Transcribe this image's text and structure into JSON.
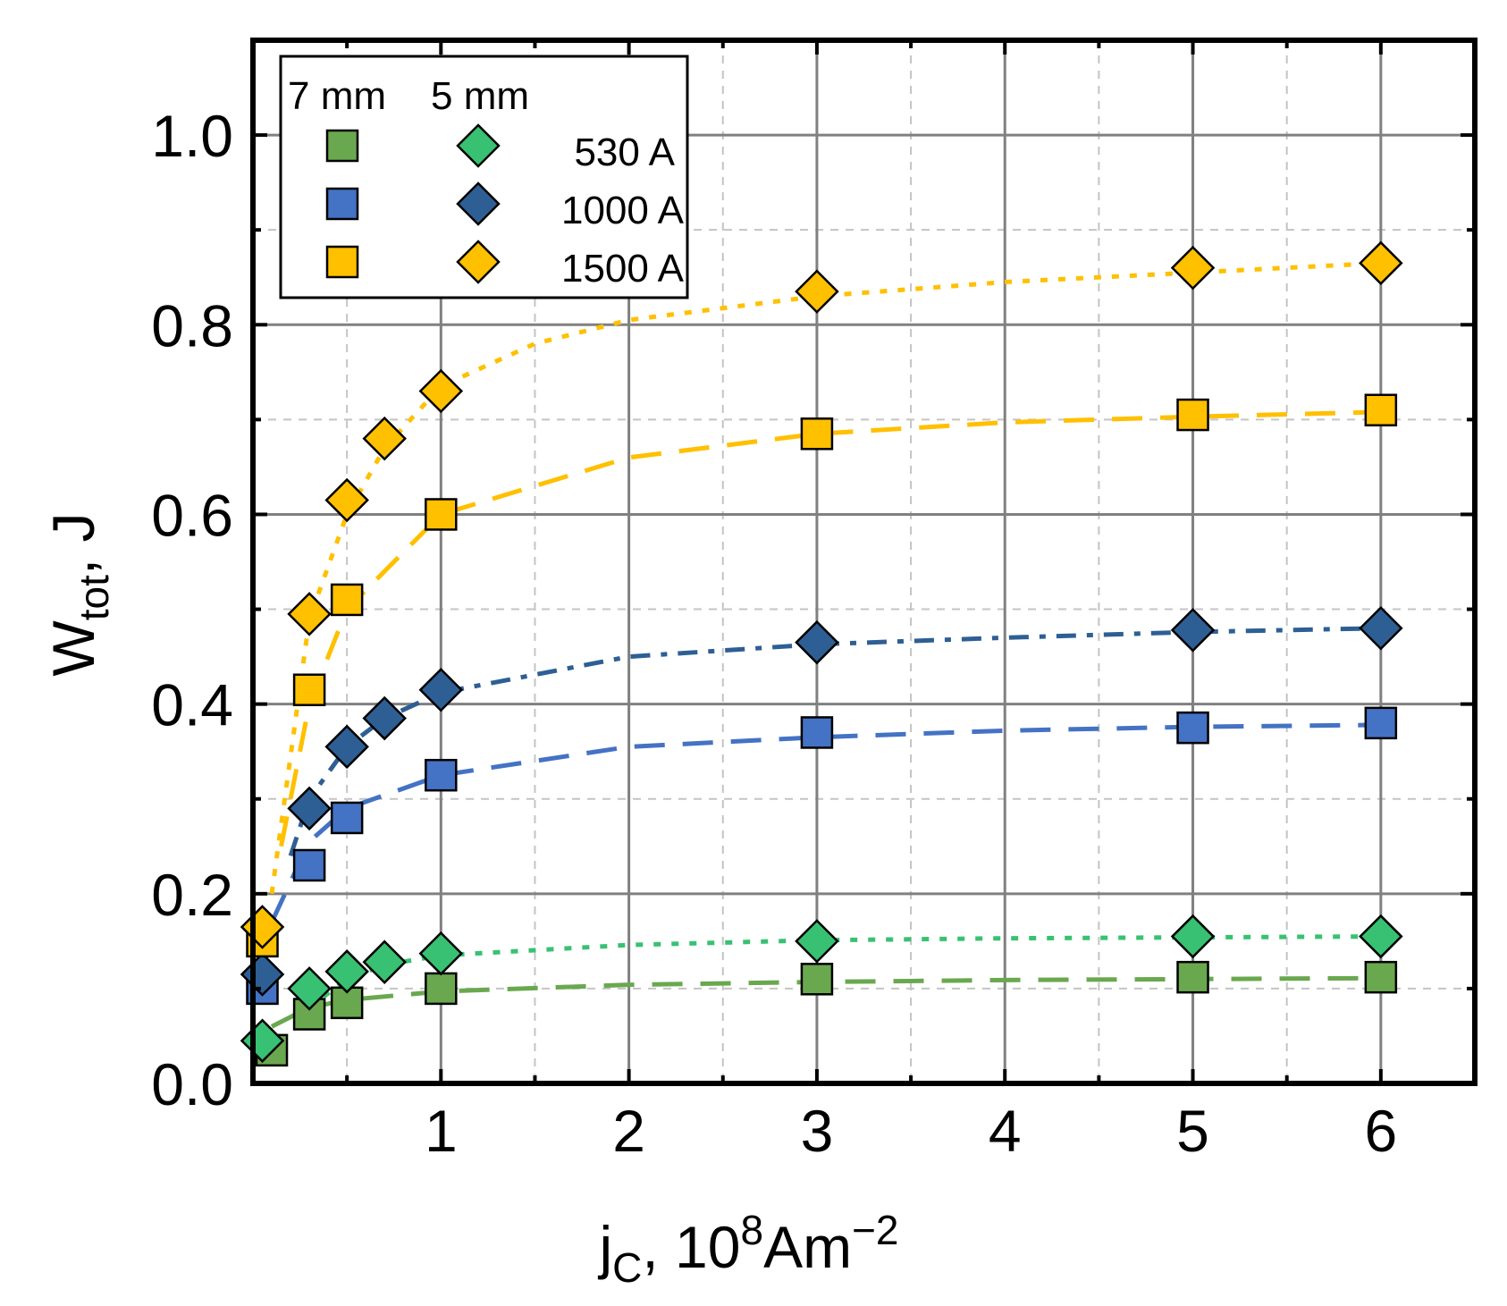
{
  "chart_data": {
    "type": "scatter",
    "title": "",
    "xlabel": {
      "base": "j",
      "sub": "C",
      "rest": ", 10",
      "sup1": "8",
      "unit": "Am",
      "sup2": "−2"
    },
    "ylabel": {
      "base": "W",
      "sub": "tot",
      "rest": ", J"
    },
    "xlim": [
      0,
      6.5
    ],
    "ylim": [
      0,
      1.1
    ],
    "x_ticks": [
      1,
      2,
      3,
      4,
      5,
      6
    ],
    "x_tick_labels": [
      "1",
      "2",
      "3",
      "4",
      "5",
      "6"
    ],
    "y_ticks": [
      0,
      0.2,
      0.4,
      0.6,
      0.8,
      1.0
    ],
    "y_tick_labels": [
      "0.0",
      "0.2",
      "0.4",
      "0.6",
      "0.8",
      "1.0"
    ],
    "grid": true,
    "legend": {
      "position": "top-left",
      "header_left": "7 mm",
      "header_right": "5 mm",
      "labels": [
        "530 A",
        "1000 A",
        "1500 A"
      ]
    },
    "colors": {
      "green": "#6aa84f",
      "green_5mm": "#38c172",
      "blue": "#4472c4",
      "blue_5mm": "#2e5f94",
      "yellow": "#ffc000"
    },
    "series": [
      {
        "name": "7 mm 530 A",
        "marker": "square",
        "color": "#6aa84f",
        "line": "dashed",
        "x": [
          0.1,
          0.3,
          0.5,
          1,
          3,
          5,
          6
        ],
        "y": [
          0.035,
          0.073,
          0.085,
          0.1,
          0.11,
          0.112,
          0.112
        ],
        "fit": [
          [
            0.1,
            0.06
          ],
          [
            0.3,
            0.08
          ],
          [
            0.5,
            0.088
          ],
          [
            1,
            0.097
          ],
          [
            2,
            0.104
          ],
          [
            3,
            0.107
          ],
          [
            4,
            0.109
          ],
          [
            5,
            0.11
          ],
          [
            6,
            0.111
          ]
        ]
      },
      {
        "name": "5 mm 530 A",
        "marker": "diamond",
        "color": "#38c172",
        "line": "dotted",
        "x": [
          0.05,
          0.3,
          0.5,
          0.7,
          1,
          3,
          5,
          6
        ],
        "y": [
          0.045,
          0.1,
          0.118,
          0.128,
          0.137,
          0.15,
          0.155,
          0.155
        ],
        "fit": [
          [
            0.3,
            0.08
          ],
          [
            0.5,
            0.11
          ],
          [
            0.7,
            0.125
          ],
          [
            1,
            0.135
          ],
          [
            2,
            0.146
          ],
          [
            3,
            0.151
          ],
          [
            4,
            0.153
          ],
          [
            5,
            0.154
          ],
          [
            6,
            0.155
          ]
        ]
      },
      {
        "name": "7 mm 1000 A",
        "marker": "square",
        "color": "#4472c4",
        "line": "dashed",
        "x": [
          0.05,
          0.3,
          0.5,
          1,
          3,
          5,
          6
        ],
        "y": [
          0.1,
          0.23,
          0.28,
          0.325,
          0.37,
          0.375,
          0.38
        ],
        "fit": [
          [
            0.1,
            0.17
          ],
          [
            0.3,
            0.255
          ],
          [
            0.5,
            0.29
          ],
          [
            1,
            0.325
          ],
          [
            2,
            0.355
          ],
          [
            3,
            0.365
          ],
          [
            4,
            0.372
          ],
          [
            5,
            0.376
          ],
          [
            6,
            0.378
          ]
        ]
      },
      {
        "name": "5 mm 1000 A",
        "marker": "diamond",
        "color": "#2e5f94",
        "line": "dash-dot",
        "x": [
          0.05,
          0.3,
          0.5,
          0.7,
          1,
          3,
          5,
          6
        ],
        "y": [
          0.115,
          0.29,
          0.355,
          0.385,
          0.415,
          0.465,
          0.478,
          0.48
        ],
        "fit": [
          [
            0.2,
            0.24
          ],
          [
            0.3,
            0.3
          ],
          [
            0.5,
            0.355
          ],
          [
            0.7,
            0.385
          ],
          [
            1,
            0.412
          ],
          [
            2,
            0.45
          ],
          [
            3,
            0.463
          ],
          [
            4,
            0.47
          ],
          [
            5,
            0.476
          ],
          [
            6,
            0.48
          ]
        ]
      },
      {
        "name": "7 mm 1500 A",
        "marker": "square",
        "color": "#ffc000",
        "line": "dashed",
        "x": [
          0.05,
          0.3,
          0.5,
          1,
          3,
          5,
          6
        ],
        "y": [
          0.15,
          0.415,
          0.51,
          0.6,
          0.685,
          0.705,
          0.71
        ],
        "fit": [
          [
            0.15,
            0.25
          ],
          [
            0.3,
            0.4
          ],
          [
            0.5,
            0.5
          ],
          [
            1,
            0.6
          ],
          [
            2,
            0.66
          ],
          [
            3,
            0.685
          ],
          [
            4,
            0.697
          ],
          [
            5,
            0.703
          ],
          [
            6,
            0.708
          ]
        ]
      },
      {
        "name": "5 mm 1500 A",
        "marker": "diamond",
        "color": "#ffc000",
        "line": "dotted",
        "x": [
          0.05,
          0.3,
          0.5,
          0.7,
          1,
          3,
          5,
          6
        ],
        "y": [
          0.165,
          0.495,
          0.615,
          0.68,
          0.73,
          0.835,
          0.86,
          0.865
        ],
        "fit": [
          [
            0.1,
            0.2
          ],
          [
            0.3,
            0.49
          ],
          [
            0.5,
            0.6
          ],
          [
            0.7,
            0.67
          ],
          [
            1,
            0.735
          ],
          [
            1.5,
            0.78
          ],
          [
            2,
            0.805
          ],
          [
            3,
            0.83
          ],
          [
            4,
            0.845
          ],
          [
            5,
            0.855
          ],
          [
            6,
            0.865
          ]
        ]
      }
    ]
  }
}
